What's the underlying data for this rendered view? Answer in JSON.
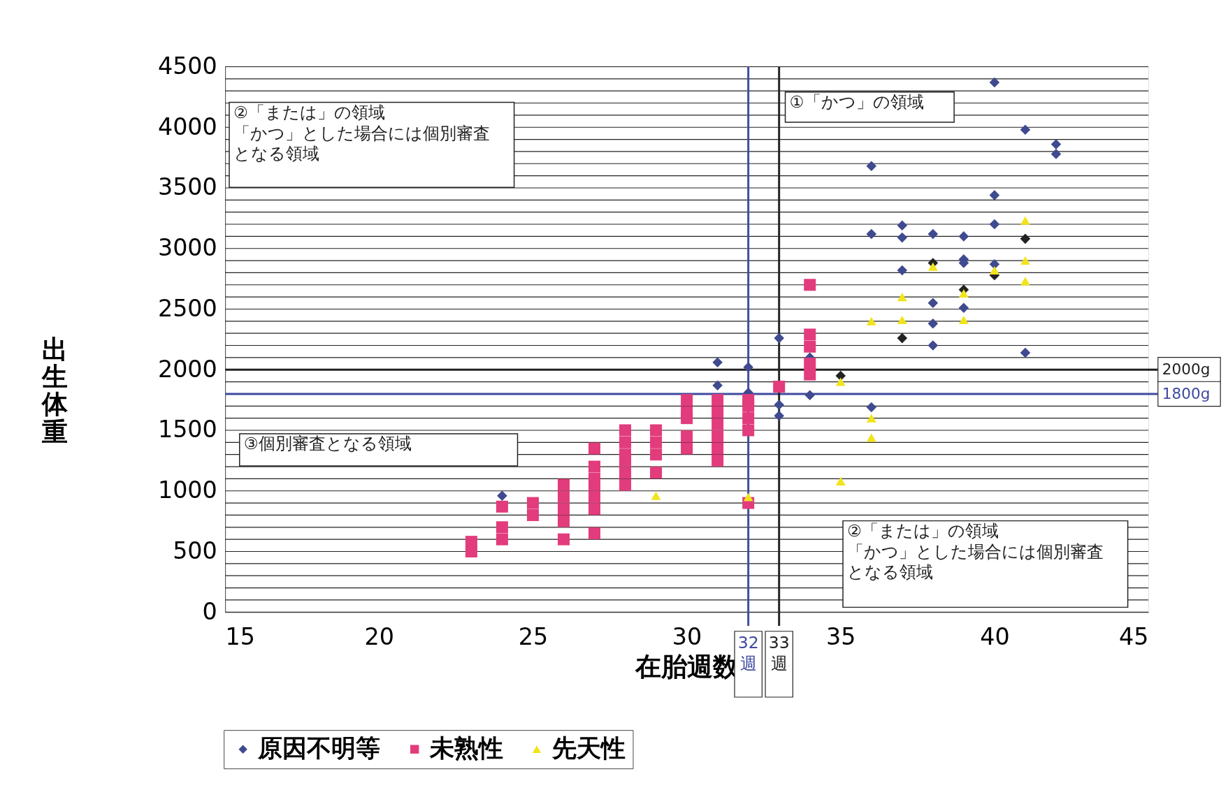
{
  "chart_data": {
    "type": "scatter",
    "xlabel": "在胎週数",
    "ylabel": "出生体重",
    "xlim": [
      15,
      45
    ],
    "xticks": [
      15,
      20,
      25,
      30,
      35,
      40,
      45
    ],
    "ylim": [
      0,
      4500
    ],
    "yticks": [
      0,
      {
        "value": 100,
        "label": null
      },
      {
        "value": 200,
        "label": null
      },
      {
        "value": 300,
        "label": null
      },
      {
        "value": 400,
        "label": null
      },
      500,
      {
        "value": 600,
        "label": null
      },
      {
        "value": 700,
        "label": null
      },
      {
        "value": 800,
        "label": null
      },
      {
        "value": 900,
        "label": null
      },
      1000,
      {
        "value": 1100,
        "label": null
      },
      {
        "value": 1200,
        "label": null
      },
      {
        "value": 1300,
        "label": null
      },
      {
        "value": 1400,
        "label": null
      },
      1500,
      {
        "value": 1600,
        "label": null
      },
      {
        "value": 1700,
        "label": null
      },
      {
        "value": 1800,
        "label": null
      },
      {
        "value": 1900,
        "label": null
      },
      2000,
      {
        "value": 2100,
        "label": null
      },
      {
        "value": 2200,
        "label": null
      },
      {
        "value": 2300,
        "label": null
      },
      {
        "value": 2400,
        "label": null
      },
      2500,
      {
        "value": 2600,
        "label": null
      },
      {
        "value": 2700,
        "label": null
      },
      {
        "value": 2800,
        "label": null
      },
      {
        "value": 2900,
        "label": null
      },
      3000,
      {
        "value": 3100,
        "label": null
      },
      {
        "value": 3200,
        "label": null
      },
      {
        "value": 3300,
        "label": null
      },
      {
        "value": 3400,
        "label": null
      },
      3500,
      {
        "value": 3600,
        "label": null
      },
      {
        "value": 3700,
        "label": null
      },
      {
        "value": 3800,
        "label": null
      },
      {
        "value": 3900,
        "label": null
      },
      4000,
      {
        "value": 4100,
        "label": null
      },
      {
        "value": 4200,
        "label": null
      },
      {
        "value": 4300,
        "label": null
      },
      {
        "value": 4400,
        "label": null
      },
      4500
    ],
    "grid": "y",
    "legend": "bottom",
    "series": [
      {
        "name": "原因不明等",
        "color": "#3f4a8f",
        "marker": "diamond",
        "x": [
          24,
          31,
          31,
          32,
          32,
          33,
          33,
          33,
          34,
          34,
          36,
          36,
          36,
          37,
          37,
          37,
          38,
          38,
          38,
          38,
          39,
          39,
          39,
          39,
          40,
          40,
          40,
          40,
          41,
          41,
          42,
          42
        ],
        "values": [
          960,
          2060,
          1870,
          2020,
          1810,
          2260,
          1710,
          1620,
          2100,
          1790,
          3680,
          3120,
          1690,
          3190,
          3090,
          2820,
          3120,
          2550,
          2380,
          2200,
          3100,
          2910,
          2880,
          2510,
          4370,
          3440,
          3200,
          2870,
          3980,
          2140,
          3860,
          3780
        ]
      },
      {
        "color": "#222222",
        "marker": "diamond",
        "x": [
          35,
          37,
          38,
          39,
          40,
          41
        ],
        "values": [
          1950,
          2260,
          2880,
          2660,
          2780,
          3080
        ]
      },
      {
        "name": "未熟性",
        "color": "#e23c7c",
        "marker": "square",
        "x": [
          23,
          23,
          24,
          24,
          24,
          25,
          25,
          26,
          26,
          26,
          26,
          26,
          27,
          27,
          27,
          27,
          27,
          27,
          27,
          28,
          28,
          28,
          28,
          28,
          28,
          29,
          29,
          29,
          29,
          30,
          30,
          30,
          30,
          30,
          31,
          31,
          31,
          31,
          31,
          31,
          32,
          32,
          32,
          32,
          32,
          33,
          34,
          34,
          34,
          34,
          34
        ],
        "values": [
          500,
          580,
          870,
          600,
          700,
          900,
          800,
          750,
          850,
          950,
          1050,
          600,
          1350,
          1200,
          850,
          950,
          1050,
          1100,
          650,
          1400,
          1500,
          1050,
          1150,
          1250,
          1300,
          1300,
          1400,
          1500,
          1150,
          1750,
          1600,
          1650,
          1350,
          1450,
          1250,
          1350,
          1450,
          1550,
          1650,
          1750,
          1700,
          1750,
          1500,
          1600,
          900,
          1860,
          2700,
          2290,
          2190,
          2050,
          1960
        ]
      },
      {
        "name": "先天性",
        "color": "#f2e41c",
        "marker": "triangle",
        "x": [
          29,
          32,
          35,
          35,
          36,
          36,
          36,
          37,
          37,
          38,
          39,
          39,
          40,
          41,
          41,
          41
        ],
        "values": [
          960,
          950,
          1900,
          1080,
          2400,
          1600,
          1440,
          2600,
          2410,
          2850,
          2630,
          2410,
          2820,
          3230,
          2900,
          2730
        ]
      }
    ],
    "ref_lines": [
      {
        "axis": "y",
        "value": 2000,
        "label": "2000g",
        "color": "#222222"
      },
      {
        "axis": "y",
        "value": 1800,
        "label": "1800g",
        "color": "#3f4a9f"
      },
      {
        "axis": "x",
        "value": 32,
        "label": "32週",
        "color": "#3f4a9f"
      },
      {
        "axis": "x",
        "value": 33,
        "label": "33週",
        "color": "#222222"
      }
    ],
    "annotations": [
      "②「または」の領域「かつ」とした場合には個別審査となる領域",
      "①「かつ」の領域",
      "③個別審査となる領域",
      "②「または」の領域「かつ」とした場合には個別審査となる領域"
    ]
  }
}
